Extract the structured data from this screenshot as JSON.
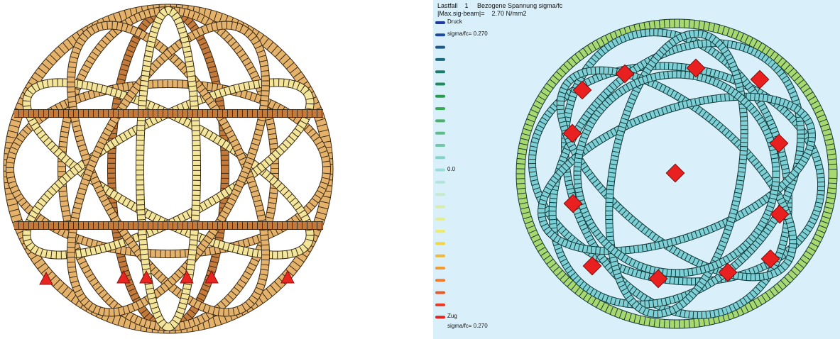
{
  "left_view": {
    "beam_fill_light": "#f3e59a",
    "beam_fill_mid": "#e4b26a",
    "beam_fill_dark": "#c47a3a",
    "support_color": "#e8261f",
    "support_icon": "triangle-support-icon"
  },
  "right_view": {
    "header_line1": "Lastfall    1     Bezogene Spannung sigma/fc",
    "header_line2": "|Max.sig-beam|=    2.70 N/mm2",
    "legend": {
      "label_top": "Druck",
      "label_top_value": "sigma/fc= 0.270",
      "label_mid": "0.0",
      "label_bottom": "Zug",
      "label_bottom_value": "sigma/fc= 0.270",
      "colors": [
        "#1f3aa0",
        "#1f4a96",
        "#1e5a8a",
        "#1e6a7c",
        "#1e7a6e",
        "#1f8a5e",
        "#2a9a4e",
        "#3aa854",
        "#4cb06c",
        "#5ebc8c",
        "#72c6aa",
        "#86d2c4",
        "#9cdcd6",
        "#b2e4dc",
        "#c6eacc",
        "#d8ecb0",
        "#e6ee8a",
        "#eeea62",
        "#f0d446",
        "#f2b83a",
        "#f09a32",
        "#ee7c2c",
        "#ea5a28",
        "#e63a24",
        "#e22420"
      ]
    },
    "beam_fill": "#7cd0d6",
    "node_color": "#e82020",
    "node_icon": "square-node-icon"
  }
}
